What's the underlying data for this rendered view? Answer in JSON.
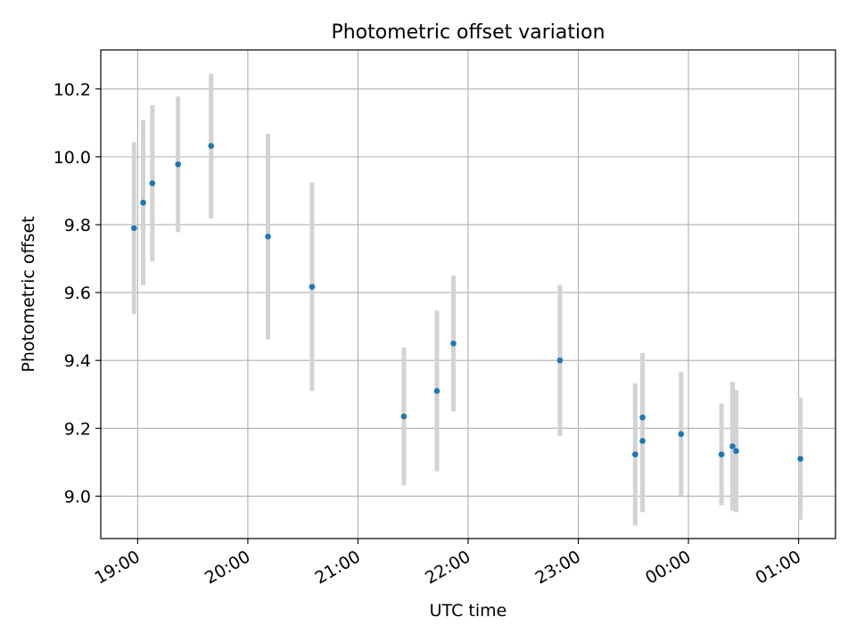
{
  "chart_data": {
    "type": "scatter",
    "title": "Photometric offset variation",
    "xlabel": "UTC time",
    "ylabel": "Photometric offset",
    "x_ticks": [
      "19:00",
      "20:00",
      "21:00",
      "22:00",
      "23:00",
      "00:00",
      "01:00"
    ],
    "x_tick_hours": [
      19,
      20,
      21,
      22,
      23,
      24,
      25
    ],
    "xlim_hours": [
      18.665,
      25.335
    ],
    "y_ticks": [
      "9.0",
      "9.2",
      "9.4",
      "9.6",
      "9.8",
      "10.0",
      "10.2"
    ],
    "y_tick_values": [
      9.0,
      9.2,
      9.4,
      9.6,
      9.8,
      10.0,
      10.2
    ],
    "ylim": [
      8.875,
      10.315
    ],
    "grid": true,
    "marker_color": "#1f77b4",
    "errorbar_color": "#d3d3d3",
    "series": [
      {
        "points": [
          {
            "t": "18:58",
            "y": 9.79,
            "err": 0.253
          },
          {
            "t": "19:03",
            "y": 9.865,
            "err": 0.243
          },
          {
            "t": "19:08",
            "y": 9.922,
            "err": 0.23
          },
          {
            "t": "19:22",
            "y": 9.978,
            "err": 0.2
          },
          {
            "t": "19:40",
            "y": 10.032,
            "err": 0.213
          },
          {
            "t": "20:11",
            "y": 9.765,
            "err": 0.303
          },
          {
            "t": "20:35",
            "y": 9.617,
            "err": 0.307
          },
          {
            "t": "21:25",
            "y": 9.235,
            "err": 0.203
          },
          {
            "t": "21:43",
            "y": 9.31,
            "err": 0.237
          },
          {
            "t": "21:52",
            "y": 9.45,
            "err": 0.2
          },
          {
            "t": "22:50",
            "y": 9.4,
            "err": 0.223
          },
          {
            "t": "23:31",
            "y": 9.123,
            "err": 0.21
          },
          {
            "t": "23:35",
            "y": 9.232,
            "err": 0.19
          },
          {
            "t": "23:35",
            "y": 9.163,
            "err": 0.21
          },
          {
            "t": "23:56",
            "y": 9.183,
            "err": 0.183
          },
          {
            "t": "00:18",
            "y": 9.123,
            "err": 0.15
          },
          {
            "t": "00:24",
            "y": 9.147,
            "err": 0.19
          },
          {
            "t": "00:26",
            "y": 9.133,
            "err": 0.18
          },
          {
            "t": "01:01",
            "y": 9.11,
            "err": 0.18
          }
        ]
      }
    ]
  }
}
